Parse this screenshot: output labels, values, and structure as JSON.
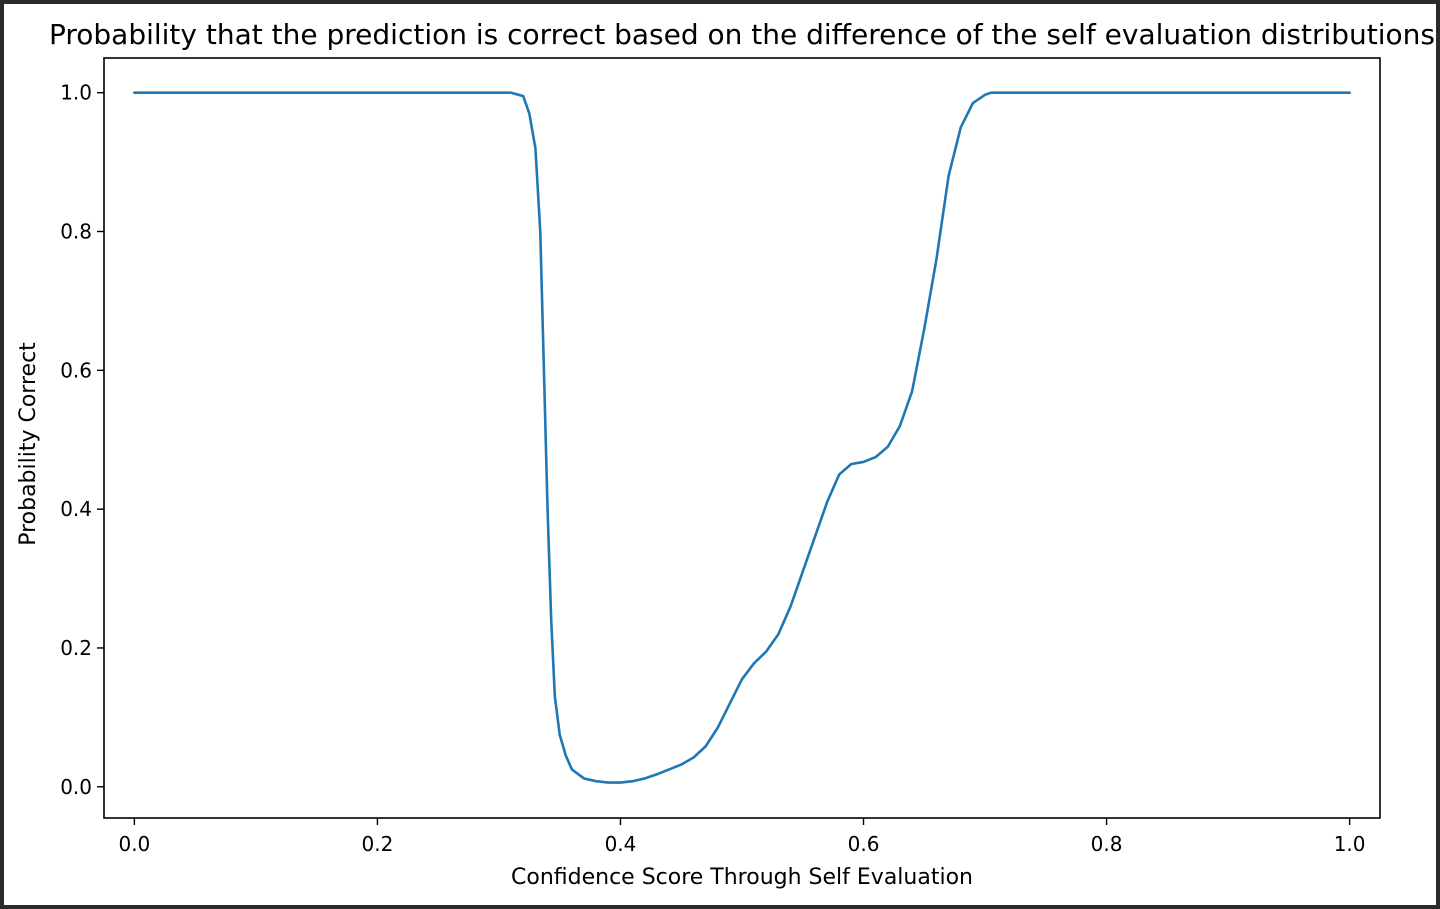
{
  "chart_data": {
    "type": "line",
    "title": "Probability that the prediction is correct based on the difference of the self evaluation distributions",
    "xlabel": "Confidence Score Through Self Evaluation",
    "ylabel": "Probability Correct",
    "xlim": [
      -0.025,
      1.025
    ],
    "ylim": [
      -0.045,
      1.05
    ],
    "x_ticks": [
      0.0,
      0.2,
      0.4,
      0.6,
      0.8,
      1.0
    ],
    "x_tick_labels": [
      "0.0",
      "0.2",
      "0.4",
      "0.6",
      "0.8",
      "1.0"
    ],
    "y_ticks": [
      0.0,
      0.2,
      0.4,
      0.6,
      0.8,
      1.0
    ],
    "y_tick_labels": [
      "0.0",
      "0.2",
      "0.4",
      "0.6",
      "0.8",
      "1.0"
    ],
    "grid": false,
    "legend": "none",
    "series": [
      {
        "color": "#1f77b4",
        "x": [
          0.0,
          0.1,
          0.2,
          0.3,
          0.31,
          0.32,
          0.325,
          0.33,
          0.334,
          0.337,
          0.34,
          0.343,
          0.346,
          0.35,
          0.355,
          0.36,
          0.37,
          0.38,
          0.39,
          0.4,
          0.41,
          0.42,
          0.43,
          0.44,
          0.45,
          0.46,
          0.47,
          0.48,
          0.49,
          0.5,
          0.51,
          0.52,
          0.53,
          0.54,
          0.55,
          0.56,
          0.57,
          0.58,
          0.59,
          0.6,
          0.61,
          0.62,
          0.63,
          0.64,
          0.65,
          0.66,
          0.67,
          0.68,
          0.69,
          0.7,
          0.705,
          0.71,
          0.715,
          0.72,
          0.73,
          0.74,
          0.8,
          0.9,
          1.0
        ],
        "y": [
          1.0,
          1.0,
          1.0,
          1.0,
          1.0,
          0.995,
          0.97,
          0.92,
          0.8,
          0.6,
          0.4,
          0.24,
          0.13,
          0.075,
          0.045,
          0.025,
          0.012,
          0.008,
          0.006,
          0.006,
          0.008,
          0.012,
          0.018,
          0.025,
          0.032,
          0.042,
          0.058,
          0.085,
          0.12,
          0.155,
          0.178,
          0.195,
          0.22,
          0.26,
          0.31,
          0.36,
          0.41,
          0.45,
          0.465,
          0.468,
          0.475,
          0.49,
          0.52,
          0.57,
          0.66,
          0.76,
          0.88,
          0.95,
          0.985,
          0.997,
          1.0,
          1.0,
          1.0,
          1.0,
          1.0,
          1.0,
          1.0,
          1.0,
          1.0
        ]
      }
    ]
  }
}
